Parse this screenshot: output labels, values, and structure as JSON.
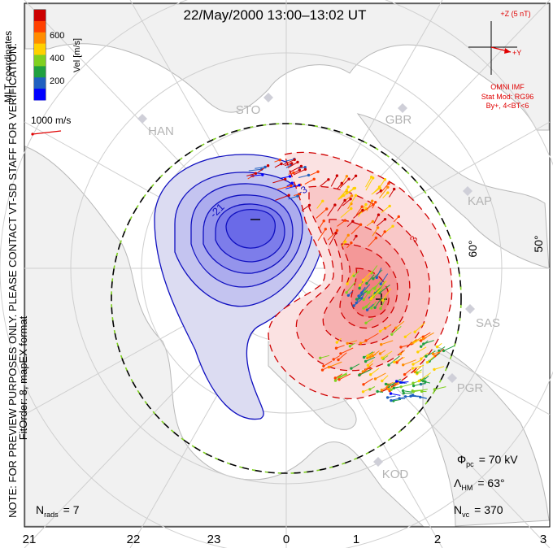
{
  "title": "22/May/2000 13:00–13:02 UT",
  "colorbar": {
    "label": "Vel [m/s]",
    "ticks": [
      "600",
      "400",
      "200"
    ],
    "colors": [
      "#cc0000",
      "#ff4000",
      "#ff8c00",
      "#ffd000",
      "#80d020",
      "#20a040",
      "#2060c0",
      "#0000ff"
    ]
  },
  "coordinates_label": "MLT coordinates",
  "reference_vector": "1000 m/s",
  "side_note": "NOTE: FOR PREVIEW PURPOSES ONLY. PLEASE CONTACT VT-SD STAFF FOR VERIFICATION.",
  "fit_order": "FitOrder: 8, mapEX format",
  "imf": {
    "z_label": "+Z (5 nT)",
    "y_label": "+Y",
    "source": "OMNI IMF",
    "stat_mod": "Stat Mod: RG96",
    "condition": "By+, 4<BT<6",
    "color": "#e00000"
  },
  "stations": [
    "STO",
    "GBR",
    "HAN",
    "KAP",
    "SAS",
    "PGR",
    "KOD"
  ],
  "latitude_labels": [
    "60°",
    "50°"
  ],
  "contour_labels": [
    "-21",
    "-3",
    "3"
  ],
  "stats": {
    "phi_pc": {
      "symbol": "Φ",
      "sub": "pc",
      "value": "= 70 kV"
    },
    "lambda_hm": {
      "symbol": "Λ",
      "sub": "HM",
      "value": "= 63°"
    },
    "n_vc": {
      "symbol": "N",
      "sub": "vc",
      "value": "= 370"
    },
    "n_rads": {
      "symbol": "N",
      "sub": "rads",
      "value": "= 7"
    }
  },
  "mlt_axis": [
    "21",
    "22",
    "23",
    "0",
    "1",
    "2",
    "3"
  ]
}
